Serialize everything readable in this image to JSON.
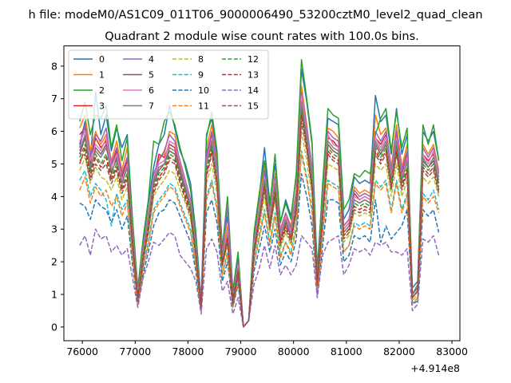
{
  "chart_data": {
    "type": "line",
    "suptitle": "h file: modeM0/AS1C09_011T06_9000006490_53200cztM0_level2_quad_clean",
    "title": "Quadrant 2 module wise count rates with 100.0s bins.",
    "xlabel": "",
    "ylabel": "",
    "x_offset_label": "+4.914e8",
    "xlim": [
      75650,
      83150
    ],
    "ylim": [
      -0.42,
      8.62
    ],
    "x_ticks": [
      76000,
      77000,
      78000,
      79000,
      80000,
      81000,
      82000,
      83000
    ],
    "y_ticks": [
      0,
      1,
      2,
      3,
      4,
      5,
      6,
      7,
      8
    ],
    "grid": false,
    "legend_position": "top-left",
    "legend_columns": 4,
    "x_start": 75950,
    "x_step": 100,
    "series": [
      {
        "name": "0",
        "color": "#1f77b4",
        "dash": "solid",
        "values": [
          5.6,
          6.3,
          5.1,
          7.2,
          5.9,
          6.5,
          5.4,
          6.1,
          5.5,
          5.9,
          3.2,
          1.1,
          2.6,
          3.8,
          4.9,
          5.6,
          5.9,
          6.8,
          6.1,
          5.4,
          5.0,
          4.4,
          2.9,
          0.8,
          5.9,
          6.4,
          5.2,
          2.4,
          3.4,
          1.0,
          2.1,
          0.0,
          0.2,
          2.8,
          4.0,
          5.5,
          3.8,
          5.0,
          3.2,
          3.9,
          3.4,
          4.6,
          7.9,
          6.9,
          5.6,
          1.8,
          4.2,
          6.4,
          6.3,
          6.2,
          3.3,
          3.6,
          4.6,
          4.4,
          4.5,
          4.4,
          7.1,
          6.3,
          6.5,
          5.3,
          6.7,
          5.3,
          5.9,
          1.2,
          1.4,
          6.0,
          5.7,
          6.0,
          5.1
        ]
      },
      {
        "name": "1",
        "color": "#ff7f0e",
        "dash": "solid",
        "values": [
          6.1,
          6.5,
          5.4,
          6.0,
          5.6,
          5.9,
          5.1,
          5.7,
          4.8,
          5.5,
          3.0,
          1.0,
          2.4,
          3.5,
          4.6,
          5.2,
          5.3,
          6.0,
          5.9,
          5.0,
          4.5,
          3.9,
          2.6,
          0.7,
          5.5,
          6.2,
          5.0,
          2.2,
          3.1,
          0.9,
          1.9,
          0.0,
          0.2,
          2.6,
          3.7,
          5.0,
          3.5,
          4.7,
          3.0,
          3.5,
          3.1,
          4.2,
          7.4,
          6.2,
          4.9,
          1.2,
          3.9,
          6.1,
          6.0,
          5.8,
          3.1,
          3.3,
          4.3,
          4.1,
          4.2,
          4.1,
          6.5,
          5.9,
          6.1,
          4.9,
          6.2,
          4.9,
          5.6,
          1.0,
          1.2,
          5.6,
          5.3,
          5.6,
          4.8
        ]
      },
      {
        "name": "2",
        "color": "#2ca02c",
        "dash": "solid",
        "values": [
          6.3,
          6.9,
          5.9,
          6.5,
          6.4,
          6.8,
          5.5,
          6.2,
          5.1,
          5.8,
          3.3,
          1.2,
          2.7,
          3.9,
          5.7,
          5.6,
          6.3,
          6.6,
          6.2,
          5.5,
          4.9,
          4.2,
          2.8,
          0.6,
          5.8,
          6.6,
          5.4,
          2.4,
          4.0,
          1.1,
          2.3,
          0.0,
          0.2,
          2.9,
          4.1,
          5.1,
          3.7,
          5.3,
          3.2,
          3.8,
          3.3,
          4.7,
          8.2,
          7.0,
          5.7,
          1.6,
          4.4,
          6.7,
          6.5,
          6.4,
          3.6,
          3.9,
          4.7,
          4.6,
          4.8,
          4.7,
          5.9,
          6.4,
          6.7,
          5.4,
          6.6,
          5.5,
          6.1,
          1.0,
          1.3,
          6.2,
          5.6,
          6.2,
          5.1
        ]
      },
      {
        "name": "3",
        "color": "#d62728",
        "dash": "solid",
        "values": [
          5.9,
          6.1,
          5.0,
          5.8,
          5.5,
          5.7,
          4.9,
          5.4,
          4.6,
          5.1,
          2.8,
          0.9,
          2.3,
          3.3,
          4.5,
          5.3,
          5.2,
          5.6,
          5.5,
          4.9,
          4.3,
          3.7,
          2.4,
          0.6,
          5.2,
          5.9,
          4.8,
          2.1,
          2.9,
          0.8,
          1.8,
          0.0,
          0.2,
          2.5,
          3.5,
          4.7,
          3.3,
          4.4,
          2.8,
          3.3,
          2.9,
          4.0,
          7.0,
          6.0,
          4.7,
          1.5,
          3.7,
          5.8,
          5.7,
          5.5,
          3.0,
          3.2,
          4.1,
          3.9,
          4.0,
          3.9,
          5.8,
          5.6,
          5.9,
          4.7,
          5.9,
          4.7,
          5.3,
          1.0,
          1.2,
          5.3,
          5.1,
          5.3,
          4.6
        ]
      },
      {
        "name": "4",
        "color": "#9467bd",
        "dash": "solid",
        "values": [
          5.5,
          6.2,
          5.2,
          5.9,
          5.7,
          6.1,
          5.0,
          5.5,
          4.7,
          5.2,
          2.9,
          1.0,
          2.4,
          3.4,
          4.7,
          5.1,
          5.4,
          5.9,
          5.7,
          5.1,
          4.5,
          3.9,
          2.5,
          0.7,
          5.3,
          6.0,
          4.9,
          2.2,
          3.7,
          0.9,
          2.0,
          0.0,
          0.2,
          2.6,
          3.6,
          4.8,
          3.4,
          4.6,
          2.9,
          3.5,
          3.0,
          4.1,
          7.2,
          6.1,
          4.9,
          1.5,
          3.8,
          6.0,
          5.8,
          5.7,
          3.1,
          3.3,
          4.2,
          4.0,
          4.1,
          4.0,
          6.0,
          5.7,
          6.0,
          4.8,
          6.0,
          4.8,
          5.4,
          1.0,
          1.2,
          5.5,
          5.2,
          5.5,
          4.7
        ]
      },
      {
        "name": "5",
        "color": "#8c564b",
        "dash": "solid",
        "values": [
          5.3,
          5.8,
          4.8,
          5.5,
          5.3,
          5.6,
          4.7,
          5.2,
          4.4,
          4.9,
          2.7,
          0.9,
          2.2,
          3.2,
          4.4,
          4.8,
          5.0,
          5.4,
          5.3,
          4.7,
          4.2,
          3.6,
          2.3,
          0.6,
          5.0,
          5.6,
          4.6,
          2.0,
          2.8,
          0.8,
          1.8,
          0.0,
          0.2,
          2.4,
          3.4,
          4.5,
          3.2,
          4.3,
          2.7,
          3.2,
          2.8,
          3.8,
          6.7,
          5.7,
          4.5,
          1.4,
          3.6,
          5.6,
          5.4,
          5.3,
          2.9,
          3.1,
          3.9,
          3.8,
          3.9,
          3.8,
          5.6,
          5.3,
          5.6,
          4.5,
          5.6,
          4.5,
          5.1,
          0.9,
          1.1,
          5.1,
          4.9,
          5.1,
          4.4
        ]
      },
      {
        "name": "6",
        "color": "#e377c2",
        "dash": "solid",
        "values": [
          5.7,
          6.0,
          5.1,
          5.6,
          5.4,
          5.8,
          4.9,
          5.3,
          4.5,
          5.0,
          2.8,
          1.0,
          2.3,
          3.3,
          4.6,
          5.0,
          5.1,
          5.7,
          5.6,
          5.0,
          4.4,
          3.8,
          2.4,
          0.6,
          5.1,
          5.8,
          4.7,
          2.1,
          2.9,
          0.8,
          1.9,
          0.0,
          0.2,
          2.5,
          3.5,
          4.6,
          3.3,
          4.5,
          2.8,
          3.4,
          2.9,
          3.9,
          7.1,
          5.9,
          4.7,
          1.4,
          3.7,
          5.9,
          5.6,
          5.5,
          3.0,
          3.2,
          4.0,
          3.9,
          4.0,
          3.9,
          5.8,
          5.5,
          5.8,
          4.6,
          5.8,
          4.6,
          5.2,
          0.9,
          1.1,
          5.3,
          5.0,
          5.4,
          4.6
        ]
      },
      {
        "name": "7",
        "color": "#7f7f7f",
        "dash": "solid",
        "values": [
          5.4,
          5.9,
          4.9,
          5.4,
          5.2,
          5.5,
          4.8,
          5.1,
          4.4,
          4.9,
          2.7,
          0.9,
          2.2,
          3.2,
          4.5,
          4.9,
          5.0,
          5.5,
          5.4,
          4.8,
          4.3,
          3.7,
          2.3,
          0.6,
          5.0,
          5.7,
          4.6,
          2.0,
          2.8,
          0.8,
          1.8,
          0.0,
          0.2,
          2.4,
          3.4,
          4.5,
          3.2,
          4.4,
          2.7,
          3.3,
          2.8,
          3.8,
          6.9,
          5.8,
          4.6,
          1.4,
          3.6,
          5.7,
          5.5,
          5.4,
          2.9,
          3.1,
          3.9,
          3.8,
          3.9,
          3.8,
          5.7,
          5.4,
          5.7,
          4.5,
          5.7,
          4.5,
          5.1,
          0.9,
          1.1,
          5.2,
          4.9,
          5.2,
          4.5
        ]
      },
      {
        "name": "8",
        "color": "#bcbd22",
        "dash": "dashed",
        "values": [
          4.8,
          5.2,
          4.4,
          4.9,
          4.6,
          4.5,
          4.2,
          4.6,
          3.9,
          4.3,
          2.4,
          0.8,
          2.0,
          2.9,
          4.0,
          4.3,
          4.5,
          4.8,
          4.7,
          4.2,
          3.8,
          3.3,
          2.1,
          0.6,
          4.4,
          5.0,
          4.1,
          1.8,
          2.5,
          0.7,
          1.6,
          0.0,
          0.2,
          2.2,
          3.0,
          4.0,
          2.9,
          3.9,
          2.4,
          2.9,
          2.5,
          3.4,
          6.0,
          5.1,
          4.0,
          1.3,
          3.2,
          5.0,
          4.9,
          4.8,
          2.6,
          2.8,
          3.5,
          3.4,
          3.5,
          3.4,
          5.0,
          4.8,
          5.0,
          4.0,
          5.0,
          4.0,
          4.5,
          0.8,
          1.0,
          4.6,
          4.4,
          4.6,
          4.0
        ]
      },
      {
        "name": "9",
        "color": "#17becf",
        "dash": "dashed",
        "values": [
          4.5,
          4.8,
          4.0,
          4.4,
          4.2,
          3.9,
          3.1,
          4.1,
          3.6,
          3.9,
          2.2,
          0.7,
          1.8,
          2.6,
          3.6,
          3.9,
          4.1,
          4.4,
          4.3,
          3.8,
          3.4,
          3.0,
          1.9,
          0.5,
          4.0,
          4.5,
          3.7,
          1.6,
          2.3,
          0.6,
          1.5,
          0.0,
          0.2,
          2.0,
          2.8,
          3.6,
          2.6,
          3.5,
          2.2,
          2.6,
          2.3,
          3.1,
          5.4,
          4.6,
          3.6,
          1.2,
          2.9,
          4.5,
          4.4,
          4.3,
          2.3,
          2.5,
          3.2,
          3.1,
          3.2,
          3.1,
          4.5,
          4.3,
          4.5,
          3.6,
          4.5,
          3.6,
          4.1,
          0.7,
          0.9,
          4.1,
          3.9,
          4.2,
          3.6
        ]
      },
      {
        "name": "10",
        "color": "#1f77b4",
        "dash": "dashed",
        "values": [
          3.8,
          3.7,
          3.3,
          3.9,
          3.7,
          3.6,
          3.2,
          3.6,
          3.0,
          3.4,
          1.9,
          0.7,
          1.6,
          2.3,
          3.1,
          3.5,
          3.6,
          3.9,
          3.8,
          3.4,
          3.0,
          2.6,
          1.7,
          0.5,
          3.5,
          3.9,
          3.2,
          1.4,
          2.0,
          0.6,
          1.3,
          0.0,
          0.2,
          1.7,
          2.4,
          3.1,
          2.3,
          3.0,
          1.9,
          2.3,
          2.0,
          2.7,
          4.7,
          4.0,
          3.1,
          1.0,
          2.5,
          3.9,
          3.9,
          3.8,
          2.0,
          2.2,
          2.8,
          2.7,
          2.8,
          2.6,
          3.9,
          2.6,
          3.1,
          2.7,
          2.9,
          3.1,
          3.6,
          0.7,
          0.8,
          3.6,
          3.4,
          3.6,
          2.9
        ]
      },
      {
        "name": "11",
        "color": "#ff7f0e",
        "dash": "dashed",
        "values": [
          4.2,
          4.6,
          3.8,
          4.3,
          4.0,
          4.2,
          3.7,
          4.0,
          3.4,
          3.8,
          2.1,
          0.7,
          1.8,
          2.5,
          3.5,
          3.8,
          4.0,
          4.3,
          4.2,
          3.7,
          3.3,
          2.9,
          1.9,
          0.5,
          3.9,
          4.4,
          3.6,
          1.6,
          2.2,
          0.6,
          1.4,
          0.0,
          0.2,
          1.9,
          2.7,
          3.5,
          2.5,
          3.4,
          2.1,
          2.6,
          2.2,
          3.0,
          5.3,
          4.5,
          3.5,
          1.1,
          2.8,
          4.4,
          4.3,
          4.2,
          2.3,
          2.5,
          3.1,
          3.0,
          3.1,
          3.0,
          4.4,
          4.2,
          4.4,
          3.5,
          4.4,
          3.5,
          4.0,
          0.7,
          0.9,
          4.0,
          3.8,
          4.0,
          3.5
        ]
      },
      {
        "name": "12",
        "color": "#2ca02c",
        "dash": "dashed",
        "values": [
          5.2,
          5.6,
          4.7,
          5.3,
          5.0,
          5.3,
          4.6,
          5.0,
          4.3,
          4.7,
          2.6,
          0.9,
          2.2,
          3.1,
          4.3,
          4.7,
          4.9,
          5.3,
          5.2,
          4.6,
          4.1,
          3.6,
          2.3,
          0.6,
          4.8,
          5.5,
          4.5,
          2.0,
          2.7,
          0.8,
          1.7,
          0.0,
          0.2,
          2.4,
          3.3,
          4.4,
          3.1,
          4.2,
          2.6,
          3.1,
          2.7,
          3.7,
          6.6,
          5.6,
          4.4,
          1.4,
          3.5,
          5.5,
          5.3,
          5.2,
          2.8,
          3.0,
          3.8,
          3.7,
          3.8,
          3.7,
          5.5,
          5.2,
          5.5,
          4.4,
          5.5,
          4.4,
          4.9,
          0.9,
          1.1,
          5.0,
          4.8,
          5.0,
          4.3
        ]
      },
      {
        "name": "13",
        "color": "#d62728",
        "dash": "dashed",
        "values": [
          5.0,
          5.5,
          4.6,
          5.2,
          4.9,
          5.2,
          4.5,
          4.9,
          4.2,
          4.6,
          2.6,
          0.9,
          2.1,
          3.0,
          4.2,
          4.6,
          4.8,
          5.2,
          5.1,
          4.5,
          4.0,
          3.5,
          2.2,
          0.6,
          4.7,
          5.4,
          4.4,
          1.9,
          2.7,
          0.8,
          1.7,
          0.0,
          0.2,
          2.3,
          3.3,
          4.3,
          3.1,
          4.1,
          2.6,
          3.1,
          2.7,
          3.6,
          6.5,
          5.5,
          4.3,
          1.3,
          3.4,
          5.4,
          5.2,
          5.1,
          2.8,
          3.0,
          3.7,
          3.6,
          3.7,
          3.6,
          5.4,
          5.1,
          5.4,
          4.3,
          5.4,
          4.3,
          4.8,
          0.9,
          1.1,
          4.9,
          4.7,
          4.9,
          4.2
        ]
      },
      {
        "name": "14",
        "color": "#9467bd",
        "dash": "dashed",
        "values": [
          2.5,
          2.8,
          2.2,
          3.0,
          2.7,
          2.8,
          2.3,
          2.5,
          2.2,
          2.4,
          1.5,
          0.6,
          1.5,
          2.0,
          2.6,
          2.5,
          2.7,
          2.9,
          2.8,
          2.2,
          2.0,
          1.8,
          1.4,
          0.4,
          2.4,
          2.7,
          2.3,
          1.1,
          1.4,
          0.4,
          0.9,
          0.0,
          0.2,
          1.3,
          1.8,
          2.5,
          1.8,
          2.5,
          1.6,
          1.9,
          1.6,
          1.9,
          2.8,
          2.6,
          2.4,
          0.9,
          2.2,
          2.6,
          2.7,
          2.8,
          1.6,
          1.9,
          2.4,
          2.3,
          2.4,
          2.2,
          2.6,
          2.5,
          2.6,
          2.3,
          2.3,
          2.2,
          2.4,
          0.5,
          0.7,
          2.7,
          2.6,
          2.8,
          2.2
        ]
      },
      {
        "name": "15",
        "color": "#8c564b",
        "dash": "dashed",
        "values": [
          5.1,
          5.3,
          4.5,
          5.0,
          4.8,
          5.0,
          4.4,
          4.8,
          4.1,
          4.5,
          2.5,
          0.8,
          2.0,
          2.9,
          4.1,
          4.5,
          4.7,
          5.1,
          5.0,
          4.4,
          3.9,
          3.4,
          2.2,
          0.6,
          4.6,
          5.3,
          4.3,
          1.9,
          2.6,
          0.7,
          1.6,
          0.0,
          0.2,
          2.2,
          3.2,
          4.2,
          3.0,
          4.0,
          2.5,
          3.0,
          2.6,
          3.5,
          6.3,
          5.4,
          4.2,
          1.3,
          3.3,
          5.3,
          5.1,
          5.0,
          2.7,
          2.9,
          3.6,
          3.5,
          3.6,
          3.5,
          5.3,
          5.0,
          5.3,
          4.2,
          5.3,
          4.2,
          4.7,
          0.9,
          1.1,
          4.8,
          4.6,
          4.8,
          4.1
        ]
      }
    ]
  }
}
